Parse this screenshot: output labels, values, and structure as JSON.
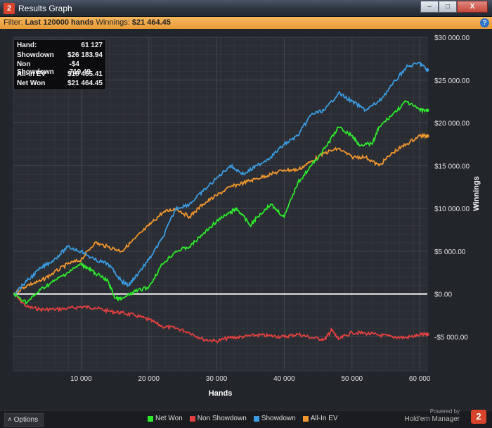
{
  "window": {
    "title": "Results Graph",
    "app_icon": "2",
    "buttons": [
      "–",
      "□",
      "X"
    ]
  },
  "filter": {
    "prefix": "Filter:",
    "hands": "Last 120000 hands",
    "winnings_label": "Winnings:",
    "winnings_value": "$21 464.45",
    "help_icon": "?"
  },
  "stats": [
    {
      "label": "Hand:",
      "value": "61 127"
    },
    {
      "label": "Showdown",
      "value": "$26 183.94"
    },
    {
      "label": "Non Showdown",
      "value": "-$4 719.49"
    },
    {
      "label": "All-In EV",
      "value": "$18 465.41"
    },
    {
      "label": "Net Won",
      "value": "$21 464.45"
    }
  ],
  "chart_data": {
    "type": "line",
    "xlabel": "Hands",
    "ylabel": "Winnings",
    "xlim": [
      0,
      61127
    ],
    "ylim": [
      -9000,
      30000
    ],
    "x_ticks": [
      10000,
      20000,
      30000,
      40000,
      50000,
      60000
    ],
    "x_tick_labels": [
      "10 000",
      "20 000",
      "30 000",
      "40 000",
      "50 000",
      "60 000"
    ],
    "y_ticks": [
      30000,
      25000,
      20000,
      15000,
      10000,
      5000,
      0,
      -5000
    ],
    "y_tick_labels": [
      "$30 000.00",
      "$25 000.00",
      "$20 000.00",
      "$15 000.00",
      "$10 000.00",
      "$5 000.00",
      "$0.00",
      "-$5 000.00"
    ],
    "grid": true,
    "legend_position": "bottom",
    "series": [
      {
        "name": "Net Won",
        "color": "#2ee82e",
        "x": [
          0,
          2000,
          4000,
          6000,
          8000,
          10000,
          11000,
          12000,
          14000,
          15000,
          16000,
          18000,
          20000,
          22000,
          24000,
          26000,
          28000,
          30000,
          32000,
          33000,
          35000,
          36000,
          38000,
          40000,
          42000,
          44000,
          46000,
          48000,
          50000,
          51000,
          53000,
          54000,
          56000,
          58000,
          60000,
          61127
        ],
        "y": [
          0,
          -1000,
          500,
          1500,
          2500,
          3500,
          3000,
          2500,
          1500,
          -500,
          -600,
          300,
          800,
          3500,
          5000,
          5500,
          7000,
          8500,
          9500,
          10000,
          8000,
          9000,
          10500,
          9000,
          13000,
          15000,
          17000,
          19500,
          18500,
          17500,
          17500,
          19500,
          21000,
          22500,
          21500,
          21464
        ]
      },
      {
        "name": "Non Showdown",
        "color": "#e04040",
        "x": [
          0,
          2000,
          4000,
          6000,
          8000,
          10000,
          12000,
          14000,
          16000,
          18000,
          20000,
          22000,
          24000,
          26000,
          28000,
          30000,
          32000,
          34000,
          36000,
          38000,
          40000,
          42000,
          44000,
          46000,
          47000,
          48000,
          50000,
          52000,
          54000,
          56000,
          58000,
          60000,
          61127
        ],
        "y": [
          0,
          -1500,
          -1800,
          -1800,
          -1700,
          -1500,
          -1600,
          -2000,
          -2200,
          -2500,
          -3000,
          -3800,
          -4000,
          -4500,
          -5300,
          -5500,
          -5100,
          -5000,
          -4800,
          -4900,
          -5000,
          -4700,
          -5100,
          -5300,
          -4200,
          -5300,
          -4500,
          -4600,
          -4800,
          -5000,
          -5100,
          -4800,
          -4719
        ]
      },
      {
        "name": "Showdown",
        "color": "#3a9be0",
        "x": [
          0,
          2000,
          4000,
          6000,
          8000,
          10000,
          12000,
          14000,
          16000,
          17000,
          18000,
          20000,
          22000,
          24000,
          26000,
          28000,
          30000,
          32000,
          34000,
          36000,
          38000,
          40000,
          42000,
          44000,
          46000,
          48000,
          50000,
          52000,
          54000,
          56000,
          58000,
          60000,
          61127
        ],
        "y": [
          0,
          1500,
          3000,
          4000,
          5500,
          5000,
          4000,
          3500,
          1500,
          1000,
          2000,
          4000,
          6500,
          10000,
          10500,
          12000,
          13500,
          15000,
          14000,
          15000,
          16000,
          17500,
          18500,
          21000,
          21500,
          23500,
          22500,
          21500,
          22500,
          24500,
          26500,
          27000,
          26183
        ]
      },
      {
        "name": "All-In EV",
        "color": "#f0962e",
        "x": [
          0,
          2000,
          4000,
          6000,
          8000,
          10000,
          12000,
          14000,
          16000,
          18000,
          20000,
          22000,
          24000,
          26000,
          28000,
          30000,
          32000,
          34000,
          36000,
          38000,
          40000,
          42000,
          44000,
          46000,
          48000,
          50000,
          52000,
          54000,
          56000,
          58000,
          60000,
          61127
        ],
        "y": [
          0,
          1000,
          1500,
          2500,
          3500,
          4000,
          6000,
          5500,
          5000,
          6500,
          8000,
          9500,
          10000,
          9000,
          10500,
          11500,
          12500,
          13000,
          13500,
          14000,
          14500,
          14500,
          15500,
          16500,
          17000,
          16000,
          16000,
          15000,
          16500,
          17500,
          18500,
          18465
        ]
      }
    ]
  },
  "options_button": {
    "label": "Options",
    "icon": "˄"
  },
  "brand": {
    "powered_by": "Powered by",
    "name": "Hold'em Manager",
    "logo": "2"
  }
}
